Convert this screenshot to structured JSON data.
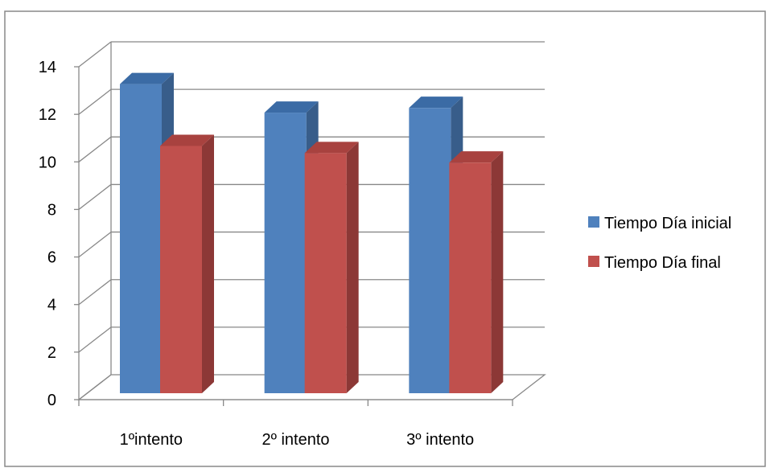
{
  "chart_data": {
    "type": "bar",
    "title": "",
    "xlabel": "",
    "ylabel": "",
    "categories": [
      "1ºintento",
      "2º intento",
      "3º intento"
    ],
    "series": [
      {
        "name": "Tiempo Día inicial",
        "values": [
          13.0,
          11.8,
          12.0
        ],
        "color": "#4F81BD",
        "side_color": "#385D8A",
        "top_color": "#3B6BA5"
      },
      {
        "name": "Tiempo Día final",
        "values": [
          10.4,
          10.1,
          9.7
        ],
        "color": "#C0504D",
        "side_color": "#8C3836",
        "top_color": "#A8423F"
      }
    ],
    "ylim": [
      0,
      14
    ],
    "yticks": [
      0,
      2,
      4,
      6,
      8,
      10,
      12,
      14
    ],
    "grid": true,
    "legend_position": "right",
    "style": "3d-column",
    "frame_color": "#888888",
    "grid_color": "#888888"
  }
}
